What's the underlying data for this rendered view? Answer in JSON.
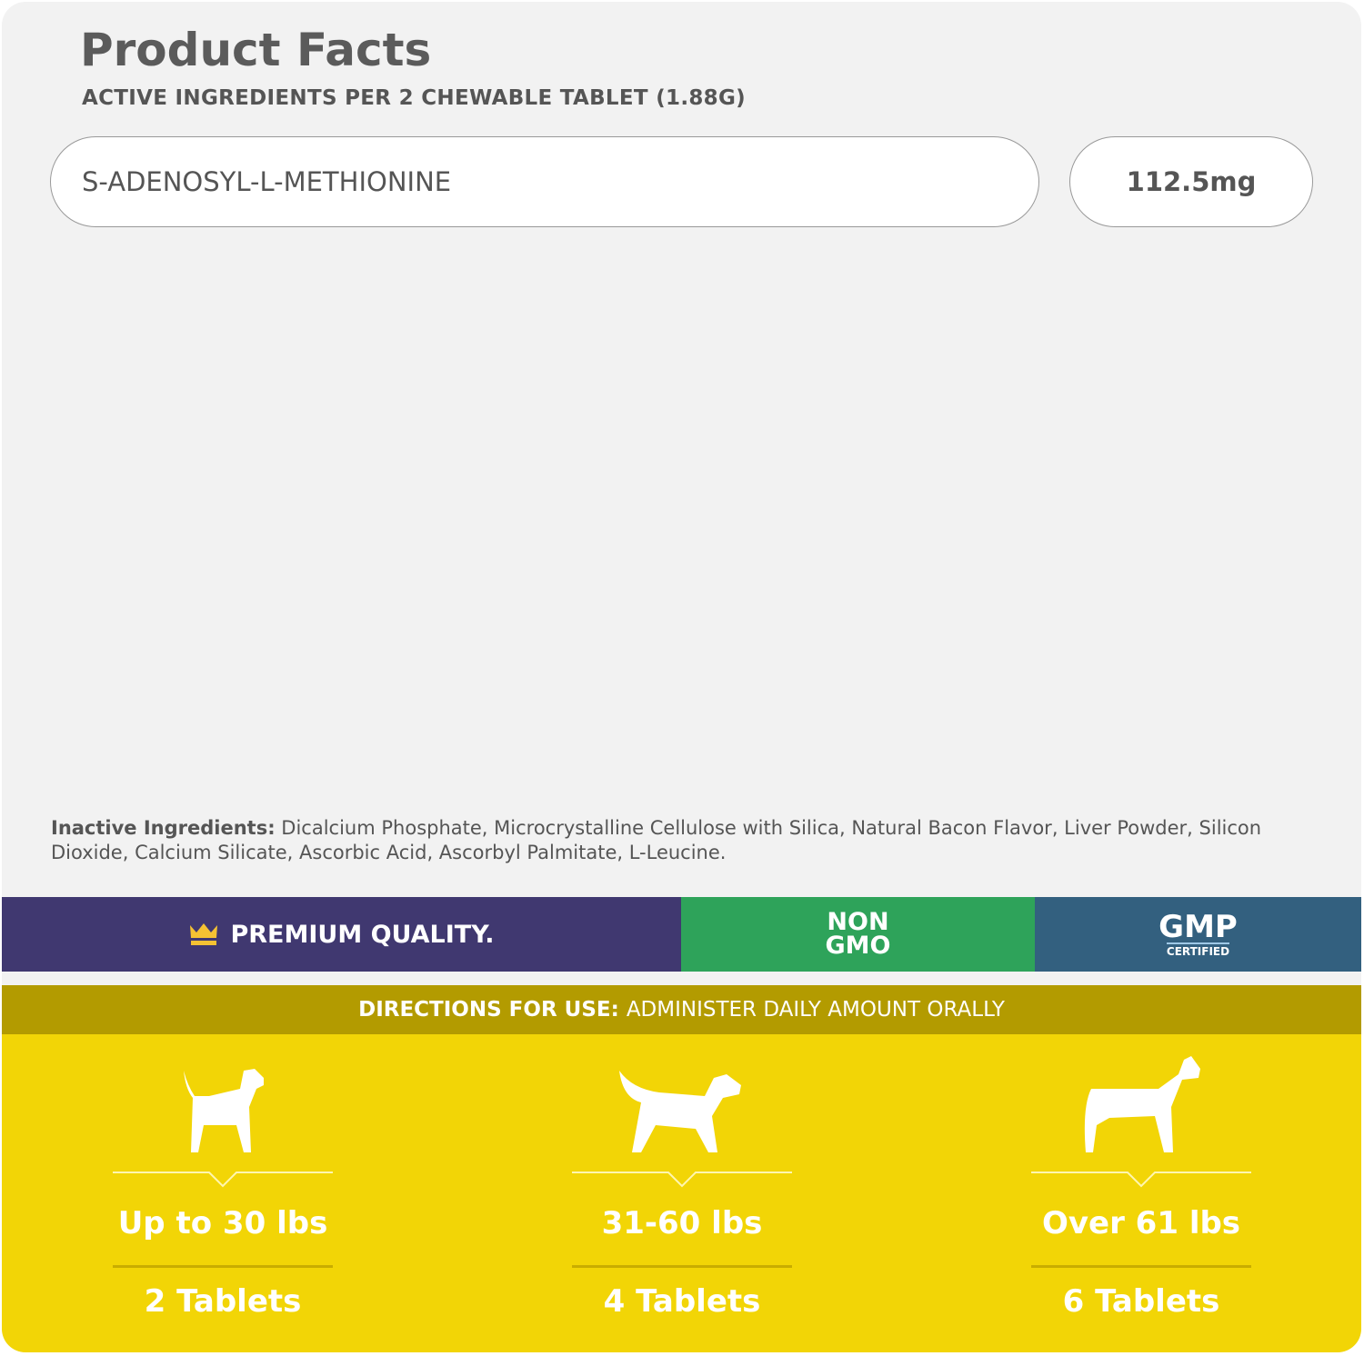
{
  "header": {
    "title": "Product Facts",
    "subtitle": "ACTIVE INGREDIENTS PER 2 CHEWABLE TABLET (1.88G)"
  },
  "active_ingredients": [
    {
      "name": "S-ADENOSYL-L-METHIONINE",
      "amount": "112.5mg"
    }
  ],
  "inactive": {
    "label": "Inactive Ingredients:",
    "text": " Dicalcium Phosphate, Microcrystalline Cellulose with Silica, Natural Bacon Flavor, Liver Powder, Silicon Dioxide, Calcium Silicate, Ascorbic Acid, Ascorbyl Palmitate, L-Leucine."
  },
  "badges": {
    "premium": "PREMIUM QUALITY.",
    "non_gmo_1": "NON",
    "non_gmo_2": "GMO",
    "gmp": "GMP",
    "certified": "CERTIFIED",
    "icon": "crown-icon"
  },
  "directions": {
    "label": "DIRECTIONS FOR USE:",
    "text": "ADMINISTER DAILY AMOUNT ORALLY"
  },
  "dosage": [
    {
      "weight": "Up to 30 lbs",
      "tablets": "2 Tablets",
      "icon": "small-dog-icon"
    },
    {
      "weight": "31-60 lbs",
      "tablets": "4 Tablets",
      "icon": "medium-dog-icon"
    },
    {
      "weight": "Over 61 lbs",
      "tablets": "6 Tablets",
      "icon": "large-dog-icon"
    }
  ],
  "colors": {
    "purple": "#403870",
    "green": "#2ea35a",
    "blue": "#33607f",
    "olive": "#b39b00",
    "yellow": "#f2d506"
  }
}
